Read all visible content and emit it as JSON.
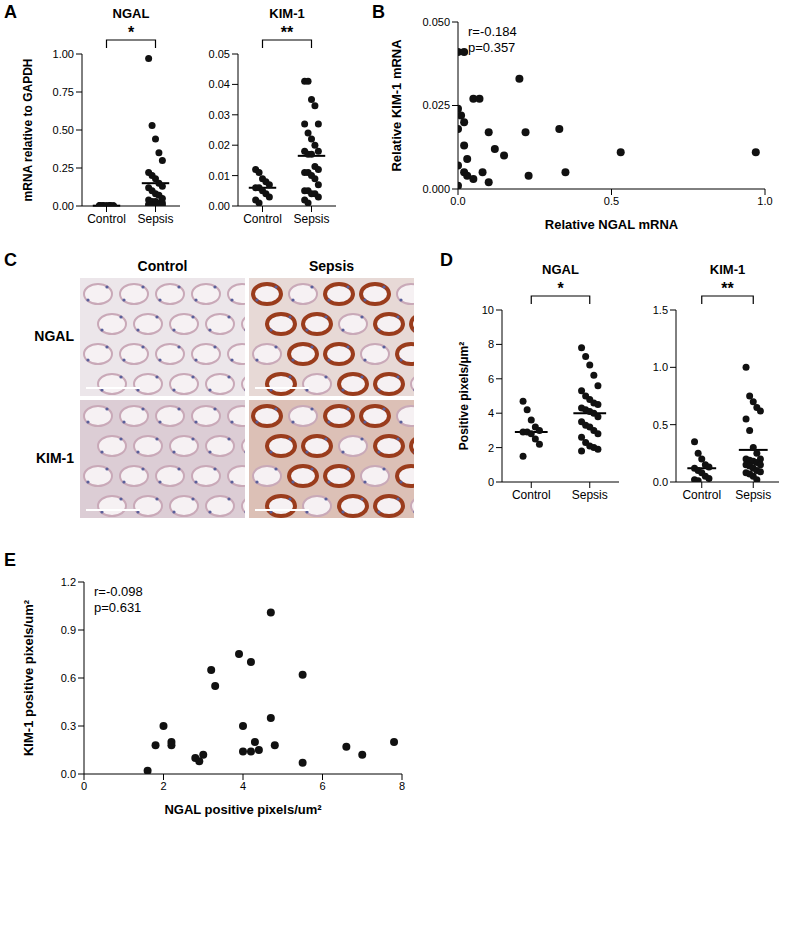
{
  "chart_data": [
    {
      "panel": "A",
      "type": "strip",
      "title": "NGAL",
      "y_label": "mRNA relative to GAPDH",
      "categories": [
        "Control",
        "Sepsis"
      ],
      "groups": [
        {
          "values": [
            0.002,
            0.003,
            0.001,
            0.004,
            0.002,
            0.003,
            0.001,
            0.002,
            0.003,
            0.002,
            0.001
          ],
          "mean": 0.002
        },
        {
          "values": [
            0.97,
            0.53,
            0.44,
            0.35,
            0.3,
            0.22,
            0.2,
            0.18,
            0.15,
            0.13,
            0.12,
            0.1,
            0.08,
            0.07,
            0.05,
            0.04,
            0.03,
            0.03,
            0.02,
            0.02,
            0.01,
            0.01,
            0.01,
            0.005,
            0.005,
            0.003,
            0.002
          ],
          "mean": 0.15
        }
      ],
      "significance": "*",
      "ylim": [
        0,
        1
      ],
      "yticks": [
        {
          "value": 0,
          "label": "0.00"
        },
        0.25,
        {
          "value": 0.5,
          "label": "0.50"
        },
        0.75,
        {
          "value": 1,
          "label": "1.00"
        }
      ]
    },
    {
      "panel": "A",
      "type": "strip",
      "title": "KIM-1",
      "categories": [
        "Control",
        "Sepsis"
      ],
      "groups": [
        {
          "values": [
            0.012,
            0.011,
            0.009,
            0.008,
            0.007,
            0.006,
            0.006,
            0.005,
            0.004,
            0.003,
            0.002,
            0.001
          ],
          "mean": 0.006
        },
        {
          "values": [
            0.041,
            0.041,
            0.035,
            0.033,
            0.027,
            0.027,
            0.024,
            0.022,
            0.02,
            0.018,
            0.018,
            0.017,
            0.017,
            0.013,
            0.012,
            0.011,
            0.011,
            0.01,
            0.009,
            0.007,
            0.005,
            0.005,
            0.004,
            0.004,
            0.003,
            0.002,
            0.001
          ],
          "mean": 0.0165
        }
      ],
      "significance": "**",
      "ylim": [
        0,
        0.05
      ],
      "yticks": [
        {
          "value": 0,
          "label": "0.00"
        },
        0.01,
        0.02,
        0.03,
        0.04,
        0.05
      ]
    },
    {
      "panel": "B",
      "type": "scatter",
      "x_label": "Relative NGAL mRNA",
      "y_label": "Relative KIM-1 mRNA",
      "annotations": [
        "r=-0.184",
        "p=0.357"
      ],
      "x": [
        0.0,
        0.02,
        0.0,
        0.01,
        0.02,
        0.05,
        0.07,
        0.0,
        0.1,
        0.12,
        0.2,
        0.22,
        0.23,
        0.02,
        0.03,
        0.0,
        0.02,
        0.05,
        0.0,
        0.1,
        0.03,
        0.35,
        0.33,
        0.53,
        0.97,
        0.15,
        0.08
      ],
      "values": [
        0.041,
        0.041,
        0.024,
        0.022,
        0.02,
        0.027,
        0.027,
        0.018,
        0.017,
        0.012,
        0.033,
        0.017,
        0.004,
        0.013,
        0.009,
        0.007,
        0.005,
        0.003,
        0.001,
        0.002,
        0.004,
        0.005,
        0.018,
        0.011,
        0.011,
        0.01,
        0.005
      ],
      "xlim": [
        0,
        1
      ],
      "xticks": [
        {
          "value": 0,
          "label": "0.0"
        },
        0.5,
        {
          "value": 1,
          "label": "1.0"
        }
      ],
      "ylim": [
        0,
        0.05
      ],
      "yticks": [
        {
          "value": 0,
          "label": "0.000"
        },
        0.025,
        {
          "value": 0.05,
          "label": "0.050"
        }
      ]
    },
    {
      "panel": "C",
      "type": "image",
      "columns": [
        "Control",
        "Sepsis"
      ],
      "rows": [
        "NGAL",
        "KIM-1"
      ]
    },
    {
      "panel": "D",
      "type": "strip",
      "title": "NGAL",
      "y_label": "Positive pixels/µm²",
      "categories": [
        "Control",
        "Sepsis"
      ],
      "groups": [
        {
          "values": [
            4.7,
            4.2,
            3.6,
            3.2,
            3.0,
            2.9,
            2.9,
            2.8,
            2.5,
            2.2,
            1.5
          ],
          "mean": 2.9
        },
        {
          "values": [
            7.8,
            7.3,
            6.8,
            6.2,
            5.6,
            5.3,
            5.0,
            4.8,
            4.6,
            4.5,
            4.3,
            4.2,
            4.1,
            4.0,
            3.8,
            3.5,
            3.3,
            3.2,
            3.0,
            2.8,
            2.6,
            2.3,
            2.1,
            2.0,
            1.9,
            1.8
          ],
          "mean": 4.0
        }
      ],
      "significance": "*",
      "ylim": [
        0,
        10
      ],
      "yticks": [
        0,
        2,
        4,
        6,
        8,
        10
      ]
    },
    {
      "panel": "D",
      "type": "strip",
      "title": "KIM-1",
      "categories": [
        "Control",
        "Sepsis"
      ],
      "groups": [
        {
          "values": [
            0.35,
            0.25,
            0.2,
            0.15,
            0.13,
            0.12,
            0.1,
            0.08,
            0.05,
            0.03,
            0.02,
            0.01
          ],
          "mean": 0.12
        },
        {
          "values": [
            1.0,
            0.75,
            0.7,
            0.65,
            0.62,
            0.55,
            0.45,
            0.3,
            0.25,
            0.2,
            0.2,
            0.19,
            0.18,
            0.17,
            0.15,
            0.15,
            0.14,
            0.12,
            0.1,
            0.09,
            0.08,
            0.07,
            0.05,
            0.02
          ],
          "mean": 0.28
        }
      ],
      "significance": "**",
      "ylim": [
        0,
        1.5
      ],
      "yticks": [
        {
          "value": 0,
          "label": "0.0"
        },
        0.5,
        {
          "value": 1,
          "label": "1.0"
        },
        1.5
      ]
    },
    {
      "panel": "E",
      "type": "scatter",
      "x_label": "NGAL positive pixels/um²",
      "y_label": "KIM-1 positive pixels/um²",
      "annotations": [
        "r=-0.098",
        "p=0.631"
      ],
      "x": [
        1.6,
        1.8,
        2.0,
        2.2,
        2.2,
        2.8,
        2.9,
        3.2,
        3.3,
        3.9,
        4.2,
        4.0,
        4.3,
        4.4,
        4.2,
        4.7,
        4.7,
        4.8,
        5.5,
        5.5,
        4.0,
        6.6,
        7.0,
        7.8,
        3.0
      ],
      "values": [
        0.02,
        0.18,
        0.3,
        0.2,
        0.18,
        0.1,
        0.08,
        0.65,
        0.55,
        0.75,
        0.7,
        0.3,
        0.2,
        0.15,
        0.14,
        1.01,
        0.35,
        0.18,
        0.62,
        0.07,
        0.14,
        0.17,
        0.12,
        0.2,
        0.12
      ],
      "xlim": [
        0,
        8
      ],
      "xticks": [
        0,
        2,
        4,
        6,
        8
      ],
      "ylim": [
        0,
        1.2
      ],
      "yticks": [
        {
          "value": 0,
          "label": "0.0"
        },
        0.3,
        0.6,
        0.9,
        1.2
      ]
    }
  ]
}
